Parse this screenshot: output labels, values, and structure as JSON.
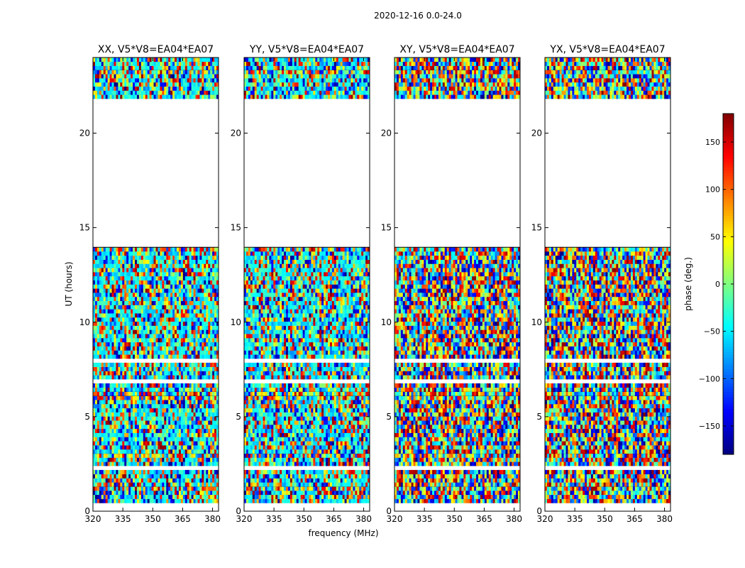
{
  "figure": {
    "suptitle": "2020-12-16 0.0-24.0"
  },
  "chart_data": {
    "type": "heatmap",
    "panels": [
      {
        "title": "XX, V5*V8=EA04*EA07",
        "polarization": "XX",
        "baseline": "V5*V8=EA04*EA07"
      },
      {
        "title": "YY, V5*V8=EA04*EA07",
        "polarization": "YY",
        "baseline": "V5*V8=EA04*EA07"
      },
      {
        "title": "XY, V5*V8=EA04*EA07",
        "polarization": "XY",
        "baseline": "V5*V8=EA04*EA07"
      },
      {
        "title": "YX, V5*V8=EA04*EA07",
        "polarization": "YX",
        "baseline": "V5*V8=EA04*EA07"
      }
    ],
    "xlabel": "frequency (MHz)",
    "ylabel": "UT (hours)",
    "xlim": [
      320,
      383
    ],
    "ylim": [
      0,
      24
    ],
    "xticks": [
      320,
      335,
      350,
      365,
      380
    ],
    "yticks": [
      0,
      5,
      10,
      15,
      20
    ],
    "data_gaps_hours": [
      [
        14.0,
        21.9
      ]
    ],
    "colorbar": {
      "label": "phase (deg.)",
      "range": [
        -180,
        180
      ],
      "ticks": [
        -150,
        -100,
        -50,
        0,
        50,
        100,
        150
      ],
      "tick_labels": [
        "−150",
        "−100",
        "−50",
        "0",
        "50",
        "100",
        "150"
      ],
      "colormap": "jet"
    }
  }
}
